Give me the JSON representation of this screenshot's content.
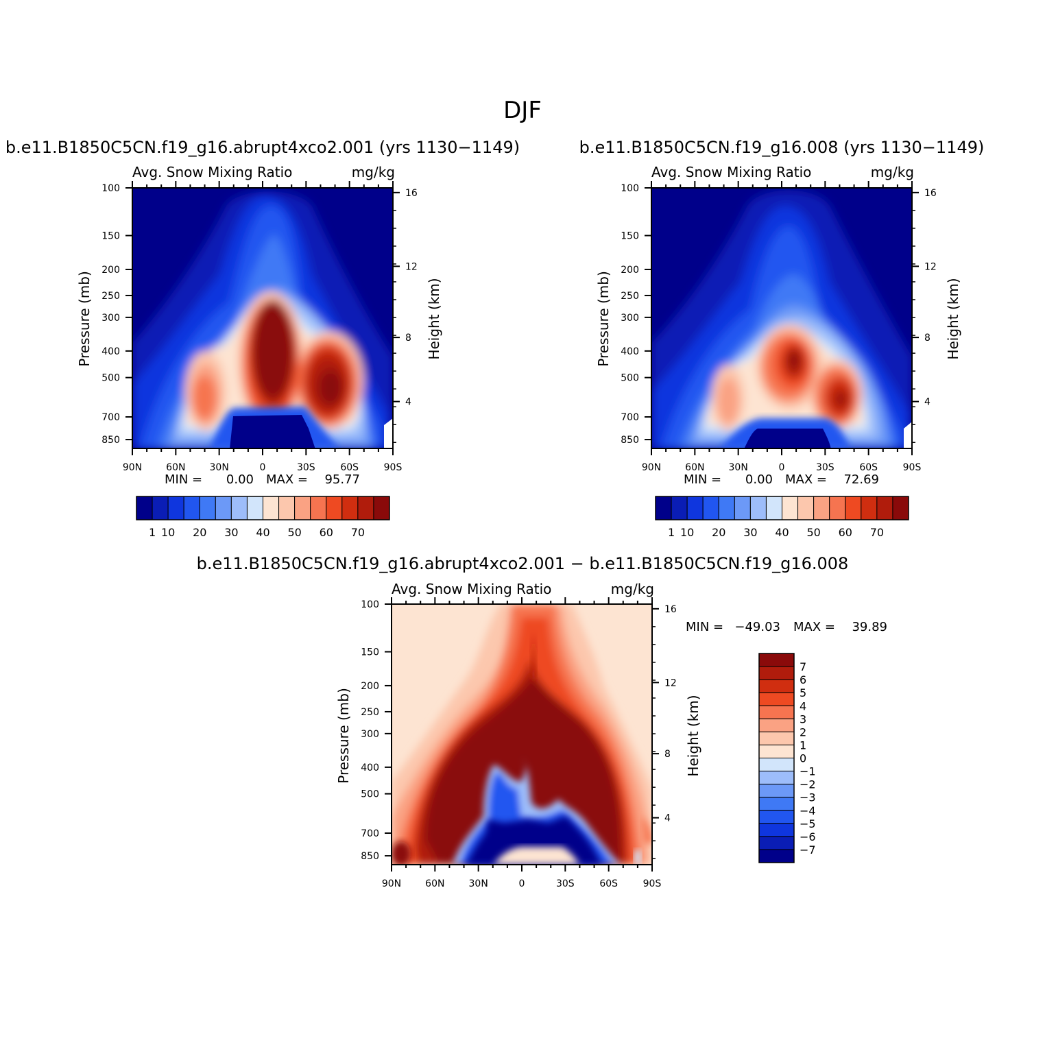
{
  "main_title": "DJF",
  "chart_data": [
    {
      "type": "heatmap",
      "panel": "top-left",
      "title": "b.e11.B1850C5CN.f19_g16.abrupt4xco2.001 (yrs 1130−1149)",
      "left_string": "Avg. Snow Mixing Ratio",
      "right_string": "mg/kg",
      "ylabel": "Pressure (mb)",
      "ylabel_right": "Height (km)",
      "x_ticks": [
        "90N",
        "60N",
        "30N",
        "0",
        "30S",
        "60S",
        "90S"
      ],
      "y_ticks": [
        "100",
        "150",
        "200",
        "250",
        "300",
        "400",
        "500",
        "700",
        "850"
      ],
      "y_ticks_right": [
        "16",
        "12",
        "8",
        "4"
      ],
      "min_label": "MIN =",
      "min_value": "0.00",
      "max_label": "MAX =",
      "max_value": "95.77",
      "colorbar_labels": [
        "1",
        "10",
        "20",
        "30",
        "40",
        "50",
        "60",
        "70"
      ],
      "legend": "bottom-horizontal"
    },
    {
      "type": "heatmap",
      "panel": "top-right",
      "title": "b.e11.B1850C5CN.f19_g16.008 (yrs 1130−1149)",
      "left_string": "Avg. Snow Mixing Ratio",
      "right_string": "mg/kg",
      "ylabel": "Pressure (mb)",
      "ylabel_right": "Height (km)",
      "x_ticks": [
        "90N",
        "60N",
        "30N",
        "0",
        "30S",
        "60S",
        "90S"
      ],
      "y_ticks": [
        "100",
        "150",
        "200",
        "250",
        "300",
        "400",
        "500",
        "700",
        "850"
      ],
      "y_ticks_right": [
        "16",
        "12",
        "8",
        "4"
      ],
      "min_label": "MIN =",
      "min_value": "0.00",
      "max_label": "MAX =",
      "max_value": "72.69",
      "colorbar_labels": [
        "1",
        "10",
        "20",
        "30",
        "40",
        "50",
        "60",
        "70"
      ],
      "legend": "bottom-horizontal"
    },
    {
      "type": "heatmap",
      "panel": "bottom",
      "title": "b.e11.B1850C5CN.f19_g16.abrupt4xco2.001 − b.e11.B1850C5CN.f19_g16.008",
      "left_string": "Avg. Snow Mixing Ratio",
      "right_string": "mg/kg",
      "ylabel": "Pressure (mb)",
      "ylabel_right": "Height (km)",
      "x_ticks": [
        "90N",
        "60N",
        "30N",
        "0",
        "30S",
        "60S",
        "90S"
      ],
      "y_ticks": [
        "100",
        "150",
        "200",
        "250",
        "300",
        "400",
        "500",
        "700",
        "850"
      ],
      "y_ticks_right": [
        "16",
        "12",
        "8",
        "4"
      ],
      "min_label": "MIN =",
      "min_value": "−49.03",
      "max_label": "MAX =",
      "max_value": "39.89",
      "colorbar_labels": [
        "7",
        "6",
        "5",
        "4",
        "3",
        "2",
        "1",
        "0",
        "−1",
        "−2",
        "−3",
        "−4",
        "−5",
        "−6",
        "−7"
      ],
      "legend": "right-vertical"
    }
  ],
  "colors": {
    "colorbar_top": [
      "#00008a",
      "#0a1db5",
      "#0f36de",
      "#2156f0",
      "#3f79f5",
      "#6c99f7",
      "#9dbdfa",
      "#d2e5fb",
      "#fde4d2",
      "#fcc7ad",
      "#faa283",
      "#f67450",
      "#ee4a22",
      "#d02e10",
      "#b01c0c",
      "#8a0a0a"
    ],
    "colorbar_bottom": [
      "#8a0a0a",
      "#b01c0c",
      "#d02e10",
      "#ee4a22",
      "#f67450",
      "#faa283",
      "#fcc7ad",
      "#fde4d2",
      "#d2e5fb",
      "#9dbdfa",
      "#6c99f7",
      "#3f79f5",
      "#2156f0",
      "#0f36de",
      "#0a1db5",
      "#00008a"
    ]
  }
}
